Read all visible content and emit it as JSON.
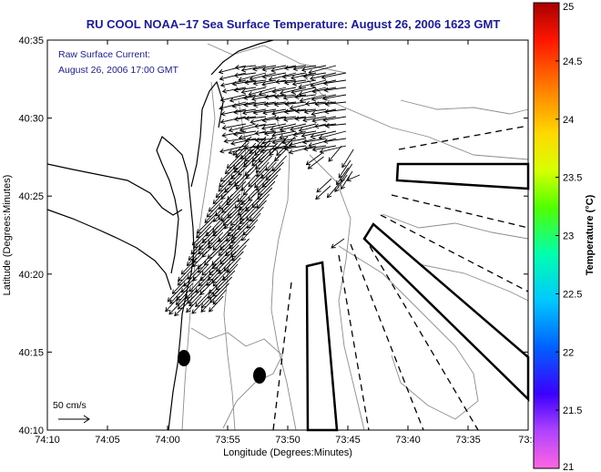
{
  "figure": {
    "title": "RU COOL  NOAA−17  Sea Surface Temperature:  August 26, 2006 1623 GMT",
    "annotation_line1": "Raw Surface Current:",
    "annotation_line2": "August 26, 2006 17:00 GMT",
    "scale_label": "50 cm/s",
    "colors": {
      "title": "#1a1aa0",
      "annotation": "#1a1aa0",
      "land_outline": "#000000",
      "bathymetry": "#8c8c8c",
      "arrows": "#000000"
    }
  },
  "chart_data": {
    "type": "map",
    "xlabel": "Longitude (Degrees:Minutes)",
    "ylabel": "Latitude (Degrees:Minutes)",
    "x_ticks": [
      "74:10",
      "74:05",
      "74:00",
      "73:55",
      "73:50",
      "73:45",
      "73:40",
      "73:35",
      "73:3"
    ],
    "y_ticks": [
      "40:35",
      "40:30",
      "40:25",
      "40:20",
      "40:15",
      "40:10"
    ],
    "xlim_minutes_west": [
      -70,
      -30
    ],
    "ylim_minutes_north": [
      10,
      35
    ],
    "colorbar": {
      "label": "Temperature (°C)",
      "ticks": [
        "25",
        "24.5",
        "24",
        "23.5",
        "23",
        "22.5",
        "22",
        "21.5",
        "21"
      ],
      "range": [
        21,
        25
      ]
    },
    "scale_arrow_cm_s": 50,
    "dark_blobs": [
      {
        "lon_min": -58.9,
        "lat_min": 14.6
      },
      {
        "lon_min": -52.3,
        "lat_min": 13.4
      }
    ]
  }
}
